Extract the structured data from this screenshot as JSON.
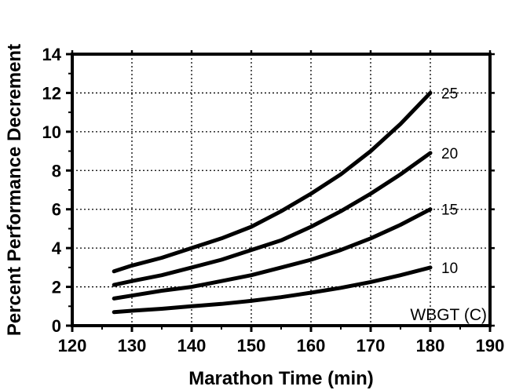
{
  "chart_data": {
    "type": "line",
    "title": "",
    "xlabel": "Marathon Time (min)",
    "ylabel": "Percent Performance Decrement",
    "xlim": [
      120,
      190
    ],
    "ylim": [
      0,
      14
    ],
    "x_ticks": [
      120,
      130,
      140,
      150,
      160,
      170,
      180,
      190
    ],
    "y_ticks": [
      0,
      2,
      4,
      6,
      8,
      10,
      12,
      14
    ],
    "grid": true,
    "legend_title": "WBGT (C)",
    "legend_placement": "bottom-right",
    "x": [
      127,
      130,
      135,
      140,
      145,
      150,
      155,
      160,
      165,
      170,
      175,
      180
    ],
    "series": [
      {
        "name": "25",
        "values": [
          2.8,
          3.1,
          3.5,
          4.0,
          4.5,
          5.1,
          5.9,
          6.8,
          7.8,
          9.0,
          10.4,
          12.0
        ]
      },
      {
        "name": "20",
        "values": [
          2.1,
          2.3,
          2.6,
          3.0,
          3.4,
          3.9,
          4.4,
          5.1,
          5.9,
          6.8,
          7.8,
          8.9
        ]
      },
      {
        "name": "15",
        "values": [
          1.4,
          1.55,
          1.8,
          2.0,
          2.3,
          2.6,
          3.0,
          3.4,
          3.9,
          4.5,
          5.2,
          6.0
        ]
      },
      {
        "name": "10",
        "values": [
          0.7,
          0.77,
          0.87,
          1.0,
          1.12,
          1.28,
          1.47,
          1.7,
          1.95,
          2.25,
          2.6,
          3.0
        ]
      }
    ],
    "colors": {
      "line": "#000000",
      "background": "#ffffff"
    }
  }
}
